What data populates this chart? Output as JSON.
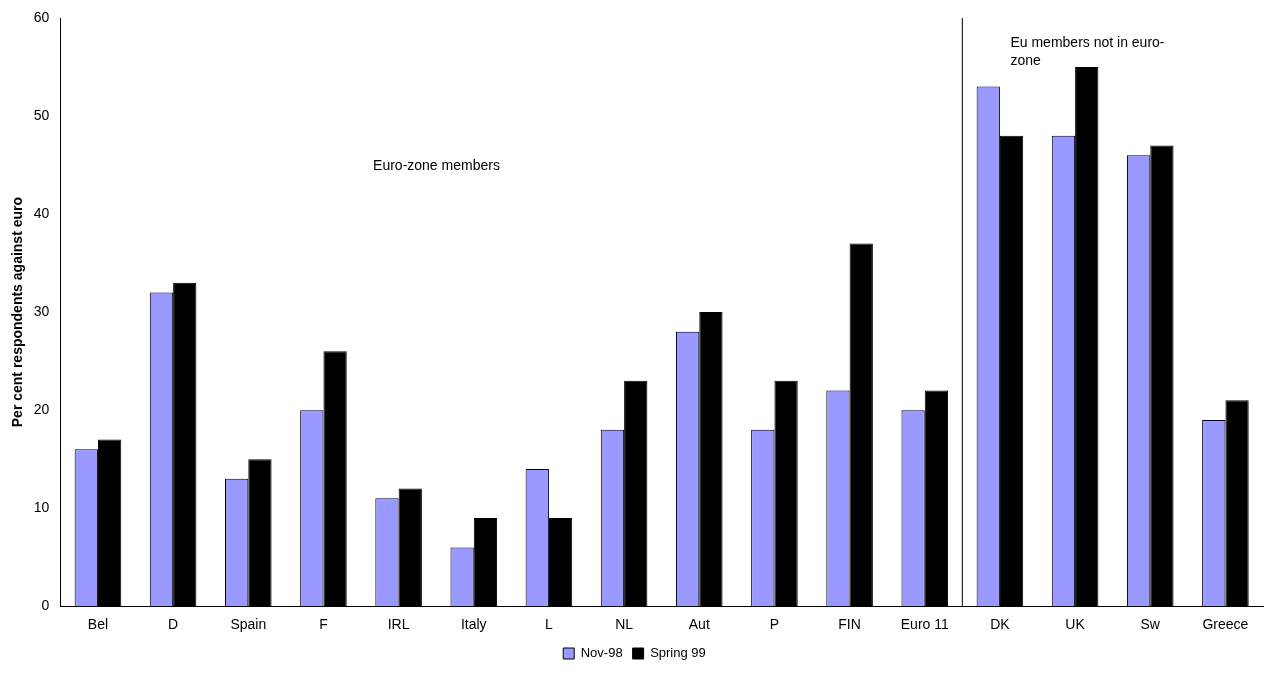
{
  "chart_data": {
    "type": "bar",
    "ylabel": "Per cent respondents against euro",
    "categories": [
      "Bel",
      "D",
      "Spain",
      "F",
      "IRL",
      "Italy",
      "L",
      "NL",
      "Aut",
      "P",
      "FIN",
      "Euro 11",
      "DK",
      "UK",
      "Sw",
      "Greece"
    ],
    "series": [
      {
        "name": "Nov-98",
        "color": "#9999ff",
        "values": [
          16,
          32,
          13,
          20,
          11,
          6,
          14,
          18,
          28,
          18,
          22,
          20,
          53,
          48,
          46,
          19
        ]
      },
      {
        "name": "Spring 99",
        "color": "#000000",
        "values": [
          17,
          33,
          15,
          26,
          12,
          9,
          9,
          23,
          30,
          23,
          37,
          22,
          48,
          55,
          47,
          21
        ]
      }
    ],
    "ylim": [
      0,
      60
    ],
    "yticks": [
      0,
      10,
      20,
      30,
      40,
      50,
      60
    ],
    "grid": false,
    "legend": "bottom",
    "annotations": [
      "Euro-zone members",
      "Eu members not in euro-zone"
    ]
  }
}
